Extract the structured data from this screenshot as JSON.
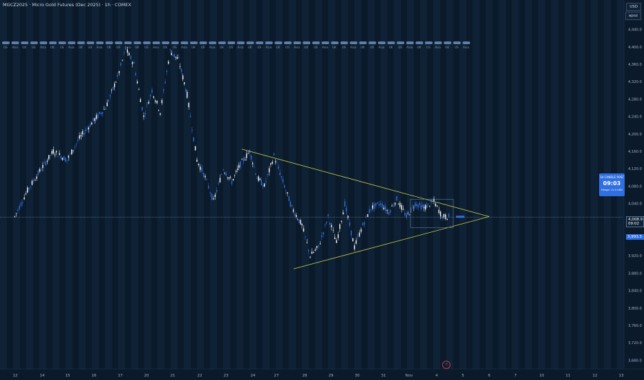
{
  "header": {
    "title": "MGCZ2025 · Micro Gold Futures (Dec 2025) · 1h · COMEX"
  },
  "top_right": {
    "currency": "USD",
    "extra": "apoz"
  },
  "colors": {
    "background": "#0b1a2b",
    "band_light": "#0f2436",
    "candle_up": "#ffffff",
    "candle_down": "#2f6fe0",
    "trendline": "#c8cf4a",
    "price_tag_current": "#0f2236",
    "price_tag_blue": "#2f6fe0",
    "session_dot": "#5f7fa8"
  },
  "session_labels": [
    "US",
    "Asia",
    "UK",
    "US",
    "Asia",
    "UK",
    "US",
    "Asia",
    "UK",
    "US",
    "Asia",
    "UK",
    "US",
    "Asia",
    "UK",
    "US",
    "Asia",
    "UK",
    "US",
    "Asia",
    "UK",
    "US",
    "Asia",
    "UK",
    "US",
    "Asia",
    "UK",
    "US",
    "Asia",
    "UK",
    "US",
    "Asia",
    "UK",
    "US",
    "Asia",
    "UK",
    "US",
    "Asia",
    "UK",
    "US",
    "Asia",
    "UK",
    "US",
    "Asia",
    "UK",
    "US",
    "Asia",
    "UK",
    "US",
    "Asia"
  ],
  "price_axis": {
    "ticks": [
      "4,440.0",
      "4,400.0",
      "4,360.0",
      "4,320.0",
      "4,280.0",
      "4,240.0",
      "4,200.0",
      "4,160.0",
      "4,120.0",
      "4,080.0",
      "4,040.0",
      "4,000.0",
      "3,960.0",
      "3,920.0",
      "3,880.0",
      "3,840.0",
      "3,800.0",
      "3,760.0",
      "3,720.0",
      "3,680.0"
    ],
    "current_price": "4,008.9",
    "current_countdown": "09:02",
    "blue_label": "3,993.5"
  },
  "time_axis": {
    "labels": [
      "12",
      "14",
      "15",
      "16",
      "17",
      "20",
      "21",
      "22",
      "23",
      "24",
      "27",
      "28",
      "29",
      "30",
      "31",
      "Nov",
      "4",
      "5",
      "6",
      "7",
      "10",
      "11",
      "12",
      "13"
    ]
  },
  "widget": {
    "title": "1H CANDLE POST",
    "countdown": "09:03",
    "range": "Range: 11.3 USD"
  },
  "chart_data": {
    "type": "candlestick",
    "symbol": "MGCZ2025",
    "timeframe": "1h",
    "ylim": [
      3660,
      4460
    ],
    "y_ticks": [
      4440,
      4400,
      4360,
      4320,
      4280,
      4240,
      4200,
      4160,
      4120,
      4080,
      4040,
      4000,
      3960,
      3920,
      3880,
      3840,
      3800,
      3760,
      3720,
      3680
    ],
    "x_tick_labels": [
      "12",
      "14",
      "15",
      "16",
      "17",
      "20",
      "21",
      "22",
      "23",
      "24",
      "27",
      "28",
      "29",
      "30",
      "31",
      "Nov",
      "4",
      "5",
      "6",
      "7",
      "10",
      "11",
      "12",
      "13"
    ],
    "close_path": [
      [
        "12",
        4010
      ],
      [
        "12",
        4070
      ],
      [
        "14",
        4120
      ],
      [
        "14",
        4160
      ],
      [
        "15",
        4140
      ],
      [
        "15",
        4190
      ],
      [
        "16",
        4230
      ],
      [
        "16",
        4260
      ],
      [
        "17",
        4330
      ],
      [
        "17",
        4395
      ],
      [
        "17",
        4360
      ],
      [
        "20",
        4240
      ],
      [
        "20",
        4300
      ],
      [
        "20",
        4250
      ],
      [
        "21",
        4390
      ],
      [
        "21",
        4370
      ],
      [
        "21",
        4290
      ],
      [
        "22",
        4140
      ],
      [
        "22",
        4100
      ],
      [
        "22",
        4045
      ],
      [
        "23",
        4120
      ],
      [
        "23",
        4090
      ],
      [
        "23",
        4130
      ],
      [
        "24",
        4160
      ],
      [
        "24",
        4100
      ],
      [
        "24",
        4080
      ],
      [
        "27",
        4150
      ],
      [
        "27",
        4090
      ],
      [
        "27",
        4030
      ],
      [
        "28",
        3990
      ],
      [
        "28",
        3920
      ],
      [
        "28",
        3940
      ],
      [
        "29",
        4010
      ],
      [
        "29",
        3950
      ],
      [
        "29",
        4040
      ],
      [
        "30",
        3940
      ],
      [
        "30",
        3990
      ],
      [
        "30",
        4030
      ],
      [
        "31",
        4040
      ],
      [
        "31",
        4020
      ],
      [
        "31",
        4050
      ],
      [
        "Nov",
        4010
      ],
      [
        "Nov",
        4040
      ],
      [
        "Nov",
        4030
      ],
      [
        "4",
        4045
      ],
      [
        "4",
        4010
      ],
      [
        "4",
        4008.9
      ]
    ],
    "current_price": 4008.9,
    "trendlines": [
      {
        "name": "upper",
        "from": [
          "24",
          4165
        ],
        "to": [
          "6",
          4010
        ]
      },
      {
        "name": "lower",
        "from": [
          "28",
          3890
        ],
        "to": [
          "6",
          4010
        ]
      }
    ]
  }
}
